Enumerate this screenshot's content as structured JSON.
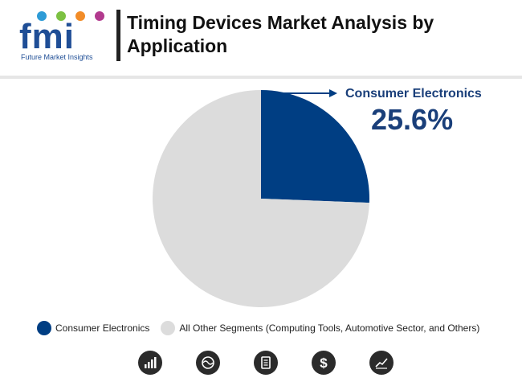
{
  "header": {
    "logo_text": "fmi",
    "logo_subtitle": "Future Market Insights",
    "title": "Timing Devices Market Analysis by Application"
  },
  "chart_data": {
    "type": "pie",
    "title": "Timing Devices Market Analysis by Application",
    "slices": [
      {
        "name": "Consumer Electronics",
        "value": 25.6,
        "color": "#003e83"
      },
      {
        "name": "All Other Segments (Computing Tools, Automotive Sector, and Others)",
        "value": 74.4,
        "color": "#dcdcdc"
      }
    ],
    "callout": {
      "label": "Consumer Electronics",
      "value": "25.6%"
    },
    "legend_position": "bottom"
  },
  "legend": {
    "items": [
      {
        "label": "Consumer Electronics",
        "color": "#003e83"
      },
      {
        "label": "All Other Segments (Computing Tools, Automotive Sector, and Others)",
        "color": "#dcdcdc"
      }
    ]
  },
  "footer_icons": [
    "bar-chart-icon",
    "globe-icon",
    "document-icon",
    "dollar-icon",
    "trend-chart-icon"
  ],
  "colors": {
    "accent": "#003e83",
    "other": "#dcdcdc",
    "logo": "#1f4e96"
  }
}
